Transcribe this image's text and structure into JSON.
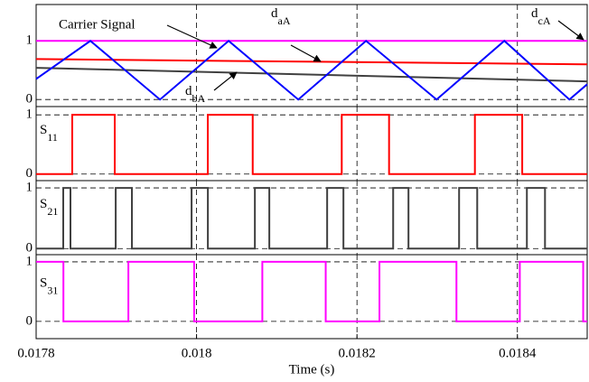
{
  "chart_data": {
    "type": "line",
    "xlabel": "Time (s)",
    "xlim": [
      0.0178,
      0.018487
    ],
    "xticks": [
      0.0178,
      0.018,
      0.0182,
      0.0184
    ],
    "grid": true,
    "panels": [
      {
        "ylim": [
          -0.12,
          1.62
        ],
        "yticks": [
          0,
          1
        ],
        "annotations": [
          {
            "text": "Carrier Signal"
          },
          {
            "main": "d",
            "sub": "aA"
          },
          {
            "main": "d",
            "sub": "bA"
          },
          {
            "main": "d",
            "sub": "cA"
          }
        ],
        "series": [
          {
            "color": "#ff00ff",
            "x": [
              0.0178,
              0.018487
            ],
            "values": [
              1,
              1
            ]
          },
          {
            "color": "#ff0000",
            "x": [
              0.0178,
              0.018487
            ],
            "values": [
              0.69,
              0.6
            ]
          },
          {
            "color": "#404040",
            "x": [
              0.0178,
              0.018487
            ],
            "values": [
              0.54,
              0.31
            ]
          },
          {
            "color": "#0000ff",
            "x": [
              0.0178,
              0.0178676,
              0.0179544,
              0.01804,
              0.0181268,
              0.0182113,
              0.0182992,
              0.0183837,
              0.0184648,
              0.018487
            ],
            "values": [
              0.35,
              1,
              0,
              1,
              0,
              1,
              0,
              1,
              0,
              0.26
            ]
          }
        ]
      },
      {
        "ylim": [
          -0.11,
          1.14
        ],
        "yticks": [
          0,
          1
        ],
        "ylabel": {
          "main": "S",
          "sub": "11"
        },
        "series": [
          {
            "color": "#ff0000",
            "x": [
              0.0178,
              0.017845,
              0.017845,
              0.017898,
              0.017898,
              0.018014,
              0.018014,
              0.01807,
              0.01807,
              0.018181,
              0.018181,
              0.01824,
              0.01824,
              0.018347,
              0.018347,
              0.018406,
              0.018406,
              0.018487
            ],
            "values": [
              0,
              0,
              1,
              1,
              0,
              0,
              1,
              1,
              0,
              0,
              1,
              1,
              0,
              0,
              1,
              1,
              0,
              0
            ]
          }
        ]
      },
      {
        "ylim": [
          -0.1,
          1.12
        ],
        "yticks": [
          0,
          1
        ],
        "ylabel": {
          "main": "S",
          "sub": "21"
        },
        "series": [
          {
            "color": "#404040",
            "x": [
              0.0178,
              0.0178338,
              0.0178338,
              0.0178428,
              0.0178428,
              0.0178992,
              0.0178992,
              0.0179194,
              0.0179194,
              0.0179938,
              0.0179938,
              0.0180141,
              0.0180141,
              0.0180727,
              0.0180727,
              0.0180907,
              0.0180907,
              0.0181628,
              0.0181628,
              0.0181831,
              0.0181831,
              0.0182451,
              0.0182451,
              0.0182642,
              0.0182642,
              0.0183273,
              0.0183273,
              0.0183499,
              0.0183499,
              0.0184118,
              0.0184118,
              0.0184344,
              0.0184344,
              0.018487
            ],
            "values": [
              0,
              0,
              1,
              1,
              0,
              0,
              1,
              1,
              0,
              0,
              1,
              1,
              0,
              0,
              1,
              1,
              0,
              0,
              1,
              1,
              0,
              0,
              1,
              1,
              0,
              0,
              1,
              1,
              0,
              0,
              1,
              1,
              0,
              0
            ]
          }
        ]
      },
      {
        "ylim": [
          -0.29,
          1.12
        ],
        "yticks": [
          0,
          1
        ],
        "ylabel": {
          "main": "S",
          "sub": "31"
        },
        "series": [
          {
            "color": "#ff00ff",
            "x": [
              0.0178,
              0.017834,
              0.017834,
              0.017915,
              0.017915,
              0.017997,
              0.017997,
              0.018082,
              0.018082,
              0.018161,
              0.018161,
              0.018228,
              0.018228,
              0.018324,
              0.018324,
              0.018403,
              0.018403,
              0.018482,
              0.018482,
              0.018487
            ],
            "values": [
              1,
              1,
              0,
              0,
              1,
              1,
              0,
              0,
              1,
              1,
              0,
              0,
              1,
              1,
              0,
              0,
              1,
              1,
              0,
              0
            ]
          }
        ]
      }
    ]
  }
}
